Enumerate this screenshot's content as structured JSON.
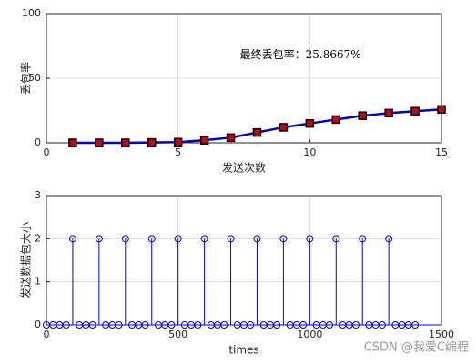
{
  "chart_data": [
    {
      "type": "line",
      "xlabel": "发送次数",
      "ylabel": "丢包率",
      "annotation": "最终丢包率：25.8667%",
      "x": [
        1,
        2,
        3,
        4,
        5,
        6,
        7,
        8,
        9,
        10,
        11,
        12,
        13,
        14,
        15
      ],
      "series": [
        {
          "color": "#0000cc",
          "marker_color": "#cc0000",
          "values": [
            0,
            0,
            0,
            0.3,
            0.5,
            2,
            4,
            8,
            12,
            15,
            18,
            21,
            23,
            24.5,
            25.8667
          ]
        }
      ],
      "xlim": [
        0,
        15
      ],
      "xticks": [
        0,
        5,
        10,
        15
      ],
      "ylim": [
        0,
        100
      ],
      "yticks": [
        0,
        50,
        100
      ],
      "grid": true
    },
    {
      "type": "stem",
      "xlabel": "times",
      "ylabel": "发送数据包大小",
      "x": [
        0,
        25,
        50,
        75,
        100,
        125,
        150,
        175,
        200,
        225,
        250,
        275,
        300,
        325,
        350,
        375,
        400,
        425,
        450,
        475,
        500,
        525,
        550,
        575,
        600,
        625,
        650,
        675,
        700,
        725,
        750,
        775,
        800,
        825,
        850,
        875,
        900,
        925,
        950,
        975,
        1000,
        1025,
        1050,
        1075,
        1100,
        1125,
        1150,
        1175,
        1200,
        1225,
        1250,
        1275,
        1300,
        1325,
        1350,
        1375,
        1400
      ],
      "series": [
        {
          "color": "#0000ff",
          "values": [
            0,
            0,
            0,
            0,
            2,
            0,
            0,
            0,
            2,
            0,
            0,
            0,
            2,
            0,
            0,
            0,
            2,
            0,
            0,
            0,
            2,
            0,
            0,
            0,
            2,
            0,
            0,
            0,
            2,
            0,
            0,
            0,
            2,
            0,
            0,
            0,
            2,
            0,
            0,
            0,
            2,
            0,
            0,
            0,
            2,
            0,
            0,
            0,
            2,
            0,
            0,
            0,
            2,
            0,
            0,
            0,
            0
          ]
        }
      ],
      "xlim": [
        0,
        1500
      ],
      "xticks": [
        0,
        500,
        1000,
        1500
      ],
      "ylim": [
        0,
        3
      ],
      "yticks": [
        0,
        1,
        2,
        3
      ],
      "grid": true
    }
  ],
  "watermark": "CSDN @我爱C编程"
}
